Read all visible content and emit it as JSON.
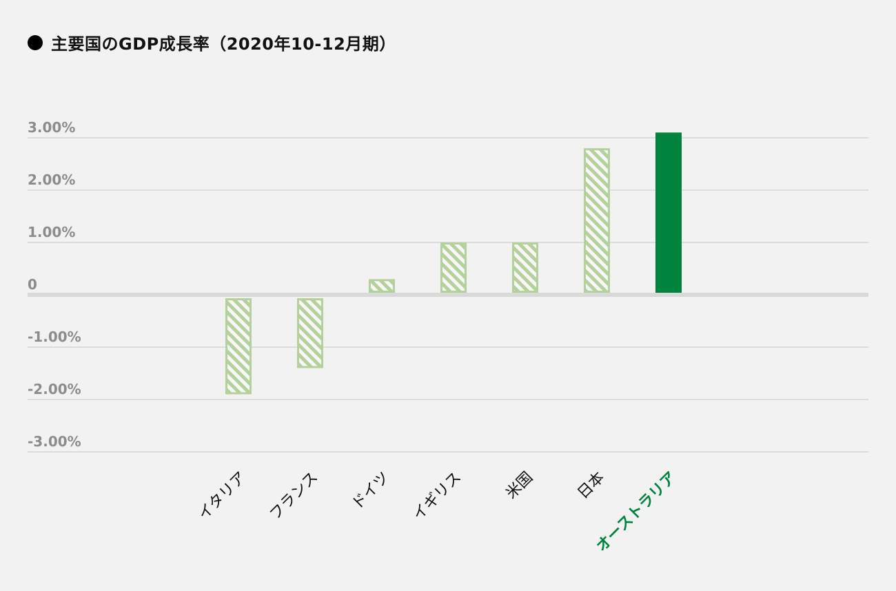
{
  "chart_data": {
    "type": "bar",
    "title": "主要国のGDP成長率（2020年10-12月期）",
    "categories": [
      "イタリア",
      "フランス",
      "ドイツ",
      "イギリス",
      "米国",
      "日本",
      "オーストラリア"
    ],
    "values": [
      -1.9,
      -1.4,
      0.3,
      1.0,
      1.0,
      2.8,
      3.1
    ],
    "ylim": [
      -3,
      3
    ],
    "yticks": [
      3,
      2,
      1,
      0,
      -1,
      -2,
      -3
    ],
    "ytick_labels": [
      "3.00%",
      "2.00%",
      "1.00%",
      "0",
      "-1.00%",
      "-2.00%",
      "-3.00%"
    ],
    "highlight_index": 6,
    "grid": true,
    "colors": {
      "highlight": "#00843d",
      "hatch": "#b5d19b",
      "axis_label": "#8c8c8c",
      "category_label": "#111111",
      "grid": "#d6d6d6",
      "zero_line": "#d9d9d9"
    }
  }
}
